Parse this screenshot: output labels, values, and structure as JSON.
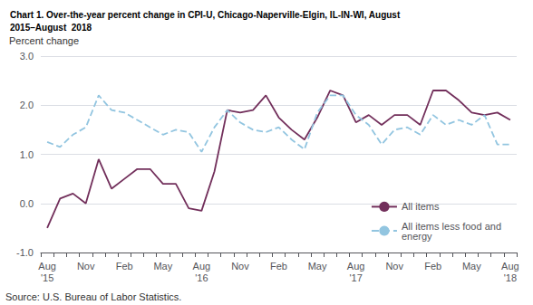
{
  "chart_data": {
    "type": "line",
    "title": "Chart 1. Over-the-year percent change in CPI-U, Chicago-Naperville-Elgin, IL-IN-WI, August\n2015–August  2018",
    "ylabel": "Percent change",
    "source": "Source: U.S. Bureau of Labor Statistics.",
    "categories": [
      "Aug\n'15",
      null,
      null,
      "Nov",
      null,
      null,
      "Feb",
      null,
      null,
      "May",
      null,
      null,
      "Aug\n'16",
      null,
      null,
      "Nov",
      null,
      null,
      "Feb",
      null,
      null,
      "May",
      null,
      null,
      "Aug\n'17",
      null,
      null,
      "Nov",
      null,
      null,
      "Feb",
      null,
      null,
      "May",
      null,
      null,
      "Aug\n'18"
    ],
    "series": [
      {
        "name": "All items",
        "color": "#722F5B",
        "line_style": "solid",
        "values": [
          -0.5,
          0.1,
          0.2,
          0.0,
          0.9,
          0.3,
          0.5,
          0.7,
          0.7,
          0.4,
          0.4,
          -0.1,
          -0.15,
          0.65,
          1.9,
          1.85,
          1.9,
          2.2,
          1.75,
          1.5,
          1.3,
          1.75,
          2.3,
          2.2,
          1.65,
          1.8,
          1.6,
          1.8,
          1.8,
          1.6,
          2.3,
          2.3,
          2.1,
          1.85,
          1.8,
          1.85,
          1.7
        ]
      },
      {
        "name": "All items less food and\nenergy",
        "color": "#92C5E0",
        "line_style": "dashed",
        "values": [
          1.25,
          1.15,
          1.4,
          1.55,
          2.2,
          1.9,
          1.85,
          1.7,
          1.55,
          1.4,
          1.5,
          1.45,
          1.05,
          1.55,
          1.9,
          1.65,
          1.5,
          1.45,
          1.55,
          1.3,
          1.1,
          1.85,
          2.2,
          2.2,
          1.8,
          1.6,
          1.2,
          1.5,
          1.55,
          1.4,
          1.8,
          1.6,
          1.7,
          1.6,
          1.8,
          1.2,
          1.2
        ]
      }
    ],
    "ylim": [
      -1.0,
      3.0
    ],
    "yticks": [
      {
        "value": -1.0,
        "label": "-1.0"
      },
      {
        "value": 0.0,
        "label": "0.0"
      },
      {
        "value": 1.0,
        "label": "1.0"
      },
      {
        "value": 2.0,
        "label": "2.0"
      },
      {
        "value": 3.0,
        "label": "3.0"
      }
    ],
    "grid": true,
    "legend": "lower right"
  }
}
